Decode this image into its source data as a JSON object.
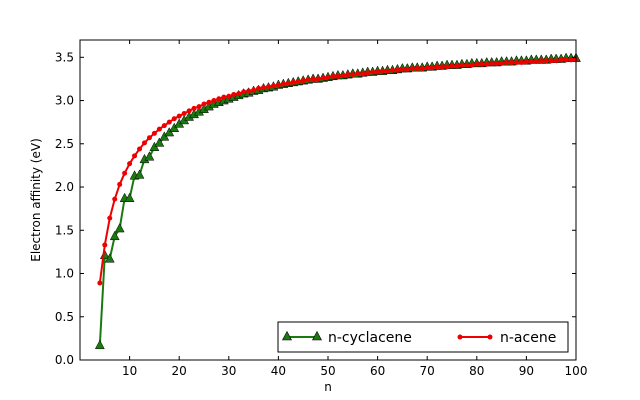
{
  "chart_data": {
    "type": "line",
    "xlabel": "n",
    "ylabel": "Electron affinity (eV)",
    "xlim": [
      0,
      100
    ],
    "ylim": [
      0.0,
      3.7
    ],
    "x_ticks": [
      10,
      20,
      30,
      40,
      50,
      60,
      70,
      80,
      90,
      100
    ],
    "y_ticks": [
      0.0,
      0.5,
      1.0,
      1.5,
      2.0,
      2.5,
      3.0,
      3.5
    ],
    "x_tick_labels": [
      "10",
      "20",
      "30",
      "40",
      "50",
      "60",
      "70",
      "80",
      "90",
      "100"
    ],
    "y_tick_labels": [
      "0.0",
      "0.5",
      "1.0",
      "1.5",
      "2.0",
      "2.5",
      "3.0",
      "3.5"
    ],
    "grid": false,
    "legend": {
      "placement": "lower-right",
      "entries": [
        "n-cyclacene",
        "n-acene"
      ]
    },
    "series": [
      {
        "name": "n-cyclacene",
        "color": "#1a7a10",
        "marker": "triangle",
        "x": [
          4,
          5,
          6,
          7,
          8,
          9,
          10,
          11,
          12,
          13,
          14,
          15,
          16,
          17,
          18,
          19,
          20,
          21,
          22,
          23,
          24,
          25,
          26,
          27,
          28,
          29,
          30,
          31,
          32,
          33,
          34,
          35,
          36,
          37,
          38,
          39,
          40,
          41,
          42,
          43,
          44,
          45,
          46,
          47,
          48,
          49,
          50,
          51,
          52,
          53,
          54,
          55,
          56,
          57,
          58,
          59,
          60,
          61,
          62,
          63,
          64,
          65,
          66,
          67,
          68,
          69,
          70,
          71,
          72,
          73,
          74,
          75,
          76,
          77,
          78,
          79,
          80,
          81,
          82,
          83,
          84,
          85,
          86,
          87,
          88,
          89,
          90,
          91,
          92,
          93,
          94,
          95,
          96,
          97,
          98,
          99,
          100
        ],
        "values": [
          0.17,
          1.21,
          1.17,
          1.43,
          1.52,
          1.87,
          1.87,
          2.13,
          2.14,
          2.32,
          2.35,
          2.46,
          2.51,
          2.58,
          2.63,
          2.68,
          2.73,
          2.77,
          2.81,
          2.84,
          2.87,
          2.9,
          2.93,
          2.96,
          2.98,
          3.0,
          3.02,
          3.04,
          3.06,
          3.08,
          3.09,
          3.11,
          3.12,
          3.14,
          3.15,
          3.16,
          3.18,
          3.19,
          3.2,
          3.21,
          3.22,
          3.23,
          3.24,
          3.25,
          3.25,
          3.26,
          3.27,
          3.28,
          3.29,
          3.29,
          3.3,
          3.31,
          3.31,
          3.32,
          3.33,
          3.33,
          3.34,
          3.34,
          3.35,
          3.35,
          3.36,
          3.37,
          3.37,
          3.38,
          3.38,
          3.38,
          3.39,
          3.39,
          3.4,
          3.4,
          3.41,
          3.41,
          3.41,
          3.42,
          3.42,
          3.43,
          3.43,
          3.43,
          3.44,
          3.44,
          3.44,
          3.45,
          3.45,
          3.45,
          3.46,
          3.46,
          3.46,
          3.47,
          3.47,
          3.47,
          3.47,
          3.48,
          3.48,
          3.48,
          3.49,
          3.49,
          3.49
        ]
      },
      {
        "name": "n-acene",
        "color": "#ee0000",
        "marker": "circle",
        "x": [
          4,
          5,
          6,
          7,
          8,
          9,
          10,
          11,
          12,
          13,
          14,
          15,
          16,
          17,
          18,
          19,
          20,
          21,
          22,
          23,
          24,
          25,
          26,
          27,
          28,
          29,
          30,
          31,
          32,
          33,
          34,
          35,
          36,
          37,
          38,
          39,
          40,
          41,
          42,
          43,
          44,
          45,
          46,
          47,
          48,
          49,
          50,
          51,
          52,
          53,
          54,
          55,
          56,
          57,
          58,
          59,
          60,
          61,
          62,
          63,
          64,
          65,
          66,
          67,
          68,
          69,
          70,
          71,
          72,
          73,
          74,
          75,
          76,
          77,
          78,
          79,
          80,
          81,
          82,
          83,
          84,
          85,
          86,
          87,
          88,
          89,
          90,
          91,
          92,
          93,
          94,
          95,
          96,
          97,
          98,
          99,
          100
        ],
        "values": [
          0.89,
          1.33,
          1.64,
          1.86,
          2.03,
          2.16,
          2.27,
          2.36,
          2.44,
          2.51,
          2.57,
          2.62,
          2.67,
          2.71,
          2.75,
          2.79,
          2.82,
          2.85,
          2.88,
          2.91,
          2.93,
          2.96,
          2.98,
          3.0,
          3.02,
          3.04,
          3.05,
          3.07,
          3.08,
          3.1,
          3.11,
          3.12,
          3.14,
          3.15,
          3.16,
          3.17,
          3.18,
          3.19,
          3.2,
          3.21,
          3.22,
          3.23,
          3.24,
          3.25,
          3.25,
          3.26,
          3.27,
          3.28,
          3.28,
          3.29,
          3.3,
          3.3,
          3.31,
          3.31,
          3.32,
          3.33,
          3.33,
          3.34,
          3.34,
          3.35,
          3.35,
          3.36,
          3.36,
          3.37,
          3.37,
          3.37,
          3.38,
          3.38,
          3.39,
          3.39,
          3.39,
          3.4,
          3.4,
          3.41,
          3.41,
          3.41,
          3.42,
          3.42,
          3.42,
          3.43,
          3.43,
          3.43,
          3.44,
          3.44,
          3.44,
          3.44,
          3.45,
          3.45,
          3.45,
          3.46,
          3.46,
          3.46,
          3.46,
          3.47,
          3.47,
          3.47,
          3.47
        ]
      }
    ]
  }
}
